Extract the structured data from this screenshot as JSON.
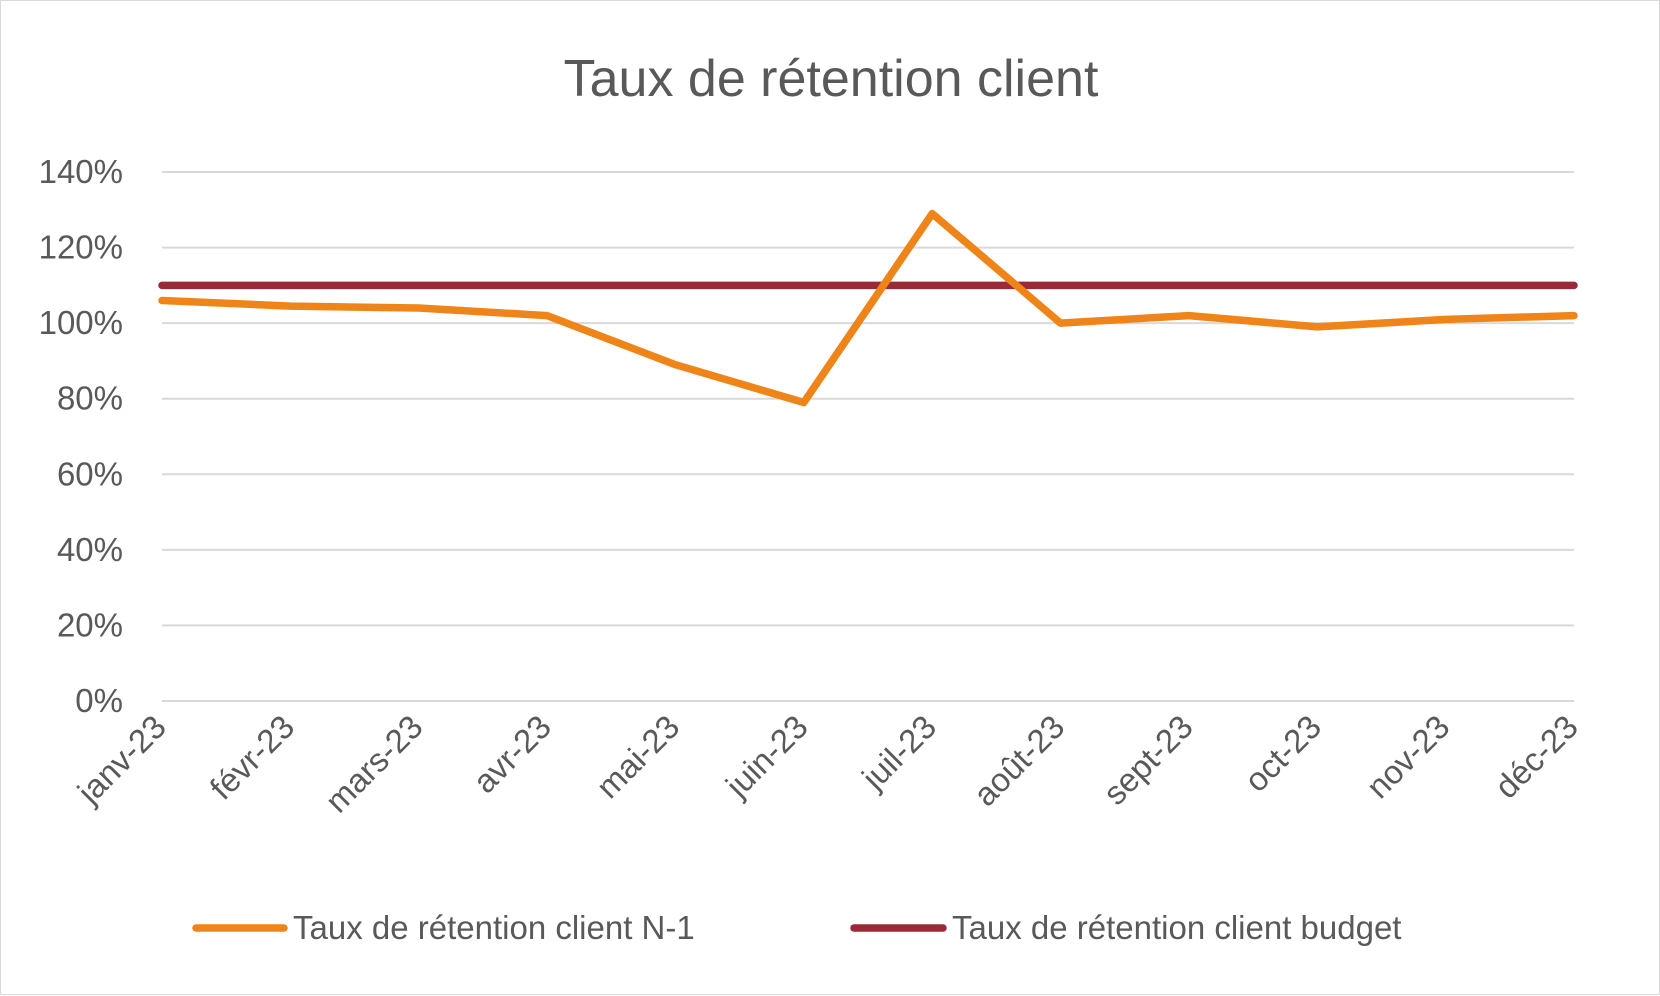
{
  "chart_data": {
    "type": "line",
    "title": "Taux de rétention client",
    "xlabel": "",
    "ylabel": "",
    "categories": [
      "janv-23",
      "févr-23",
      "mars-23",
      "avr-23",
      "mai-23",
      "juin-23",
      "juil-23",
      "août-23",
      "sept-23",
      "oct-23",
      "nov-23",
      "déc-23"
    ],
    "ylim": [
      0,
      1.4
    ],
    "yticks": [
      0,
      0.2,
      0.4,
      0.6,
      0.8,
      1.0,
      1.2,
      1.4
    ],
    "ytick_labels": [
      "0%",
      "20%",
      "40%",
      "60%",
      "80%",
      "100%",
      "120%",
      "140%"
    ],
    "grid": true,
    "legend_position": "bottom",
    "series": [
      {
        "name": "Taux de rétention client N-1",
        "color": "#ef8419",
        "values": [
          1.06,
          1.045,
          1.04,
          1.02,
          0.89,
          0.79,
          1.29,
          1.0,
          1.02,
          0.99,
          1.01,
          1.02
        ]
      },
      {
        "name": "Taux de rétention client budget",
        "color": "#9b2a38",
        "values": [
          1.1,
          1.1,
          1.1,
          1.1,
          1.1,
          1.1,
          1.1,
          1.1,
          1.1,
          1.1,
          1.1,
          1.1
        ]
      }
    ]
  }
}
